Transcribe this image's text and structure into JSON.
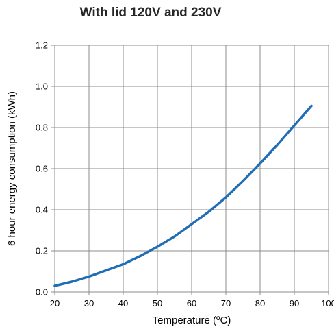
{
  "chart_data": {
    "type": "line",
    "title": "With lid 120V and 230V",
    "xlabel": "Temperature (ºC)",
    "ylabel": "6 hour energy consumption (kWh)",
    "xlim": [
      20,
      100
    ],
    "ylim": [
      0.0,
      1.2
    ],
    "x_ticks": [
      "20",
      "30",
      "40",
      "50",
      "60",
      "70",
      "80",
      "90",
      "100"
    ],
    "y_ticks": [
      "0.0",
      "0.2",
      "0.4",
      "0.6",
      "0.8",
      "1.0",
      "1.2"
    ],
    "grid": true,
    "legend": "none",
    "series": [
      {
        "color": "#1f6eb5",
        "x": [
          20,
          25,
          30,
          35,
          40,
          45,
          50,
          55,
          60,
          65,
          70,
          75,
          80,
          85,
          90,
          95
        ],
        "y": [
          0.03,
          0.05,
          0.075,
          0.105,
          0.135,
          0.175,
          0.22,
          0.27,
          0.33,
          0.39,
          0.46,
          0.54,
          0.625,
          0.715,
          0.81,
          0.905
        ]
      }
    ]
  }
}
